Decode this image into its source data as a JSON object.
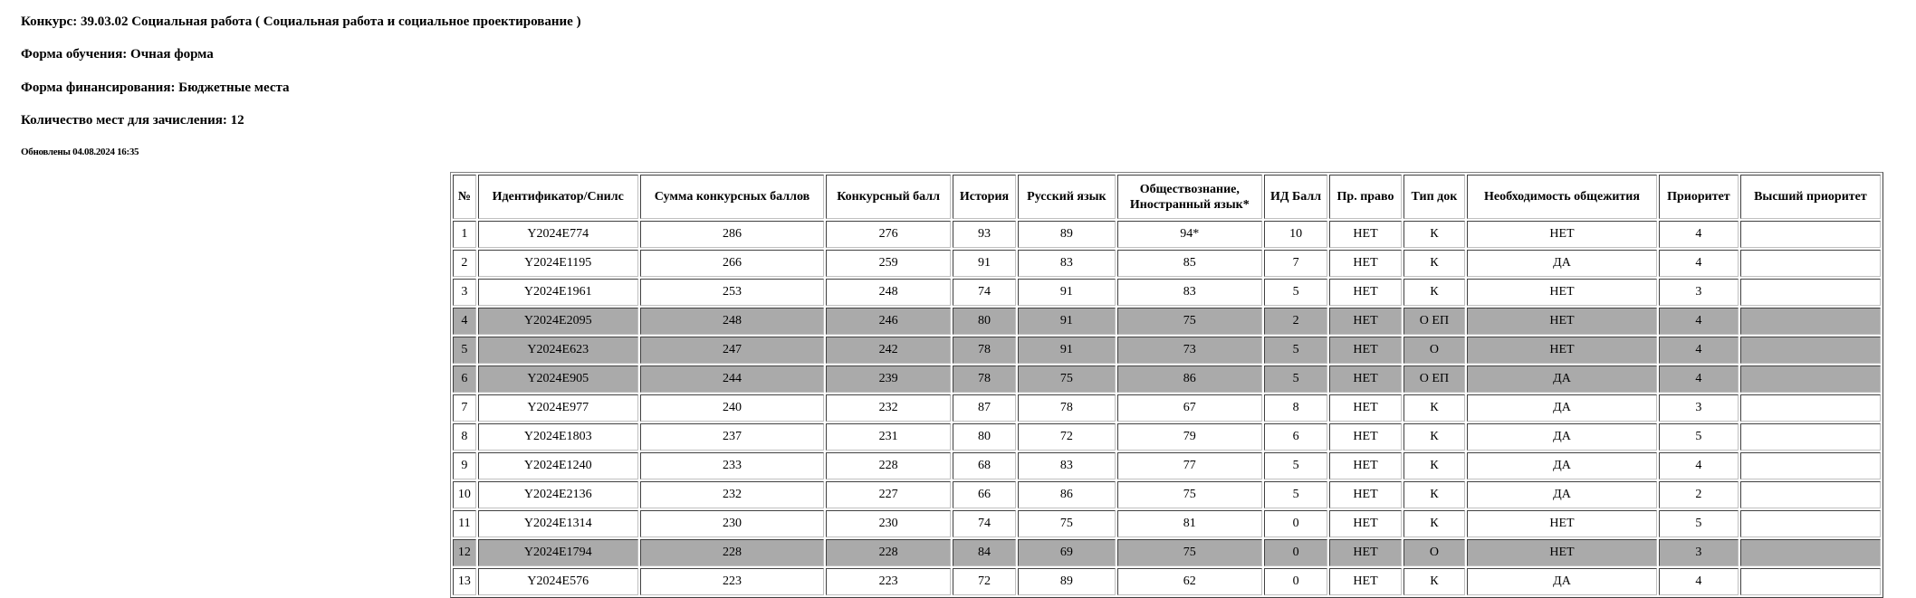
{
  "header": {
    "competition": "Конкурс: 39.03.02 Социальная работа ( Социальная работа и социальное проектирование )",
    "study_form": "Форма обучения: Очная форма",
    "funding_form": "Форма финансирования: Бюджетные места",
    "places": "Количество мест для зачисления: 12",
    "updated": "Обновлены 04.08.2024 16:35"
  },
  "colors": {
    "highlight_row": "#aaaaaa",
    "row": "#ffffff"
  },
  "table": {
    "columns": [
      "№",
      "Идентификатор/Снилс",
      "Сумма конкурсных баллов",
      "Конкурсный балл",
      "История",
      "Русский язык",
      "Обществознание, Иностранный язык*",
      "ИД Балл",
      "Пр. право",
      "Тип док",
      "Необходимость общежития",
      "Приоритет",
      "Высший приоритет"
    ],
    "rows": [
      {
        "highlight": false,
        "cells": [
          "1",
          "Y2024E774",
          "286",
          "276",
          "93",
          "89",
          "94*",
          "10",
          "НЕТ",
          "К",
          "НЕТ",
          "4",
          ""
        ]
      },
      {
        "highlight": false,
        "cells": [
          "2",
          "Y2024E1195",
          "266",
          "259",
          "91",
          "83",
          "85",
          "7",
          "НЕТ",
          "К",
          "ДА",
          "4",
          ""
        ]
      },
      {
        "highlight": false,
        "cells": [
          "3",
          "Y2024E1961",
          "253",
          "248",
          "74",
          "91",
          "83",
          "5",
          "НЕТ",
          "К",
          "НЕТ",
          "3",
          ""
        ]
      },
      {
        "highlight": true,
        "cells": [
          "4",
          "Y2024E2095",
          "248",
          "246",
          "80",
          "91",
          "75",
          "2",
          "НЕТ",
          "О ЕП",
          "НЕТ",
          "4",
          ""
        ]
      },
      {
        "highlight": true,
        "cells": [
          "5",
          "Y2024E623",
          "247",
          "242",
          "78",
          "91",
          "73",
          "5",
          "НЕТ",
          "О",
          "НЕТ",
          "4",
          ""
        ]
      },
      {
        "highlight": true,
        "cells": [
          "6",
          "Y2024E905",
          "244",
          "239",
          "78",
          "75",
          "86",
          "5",
          "НЕТ",
          "О ЕП",
          "ДА",
          "4",
          ""
        ]
      },
      {
        "highlight": false,
        "cells": [
          "7",
          "Y2024E977",
          "240",
          "232",
          "87",
          "78",
          "67",
          "8",
          "НЕТ",
          "К",
          "ДА",
          "3",
          ""
        ]
      },
      {
        "highlight": false,
        "cells": [
          "8",
          "Y2024E1803",
          "237",
          "231",
          "80",
          "72",
          "79",
          "6",
          "НЕТ",
          "К",
          "ДА",
          "5",
          ""
        ]
      },
      {
        "highlight": false,
        "cells": [
          "9",
          "Y2024E1240",
          "233",
          "228",
          "68",
          "83",
          "77",
          "5",
          "НЕТ",
          "К",
          "ДА",
          "4",
          ""
        ]
      },
      {
        "highlight": false,
        "cells": [
          "10",
          "Y2024E2136",
          "232",
          "227",
          "66",
          "86",
          "75",
          "5",
          "НЕТ",
          "К",
          "ДА",
          "2",
          ""
        ]
      },
      {
        "highlight": false,
        "cells": [
          "11",
          "Y2024E1314",
          "230",
          "230",
          "74",
          "75",
          "81",
          "0",
          "НЕТ",
          "К",
          "НЕТ",
          "5",
          ""
        ]
      },
      {
        "highlight": true,
        "cells": [
          "12",
          "Y2024E1794",
          "228",
          "228",
          "84",
          "69",
          "75",
          "0",
          "НЕТ",
          "О",
          "НЕТ",
          "3",
          ""
        ]
      },
      {
        "highlight": false,
        "cells": [
          "13",
          "Y2024E576",
          "223",
          "223",
          "72",
          "89",
          "62",
          "0",
          "НЕТ",
          "К",
          "ДА",
          "4",
          ""
        ]
      }
    ]
  }
}
